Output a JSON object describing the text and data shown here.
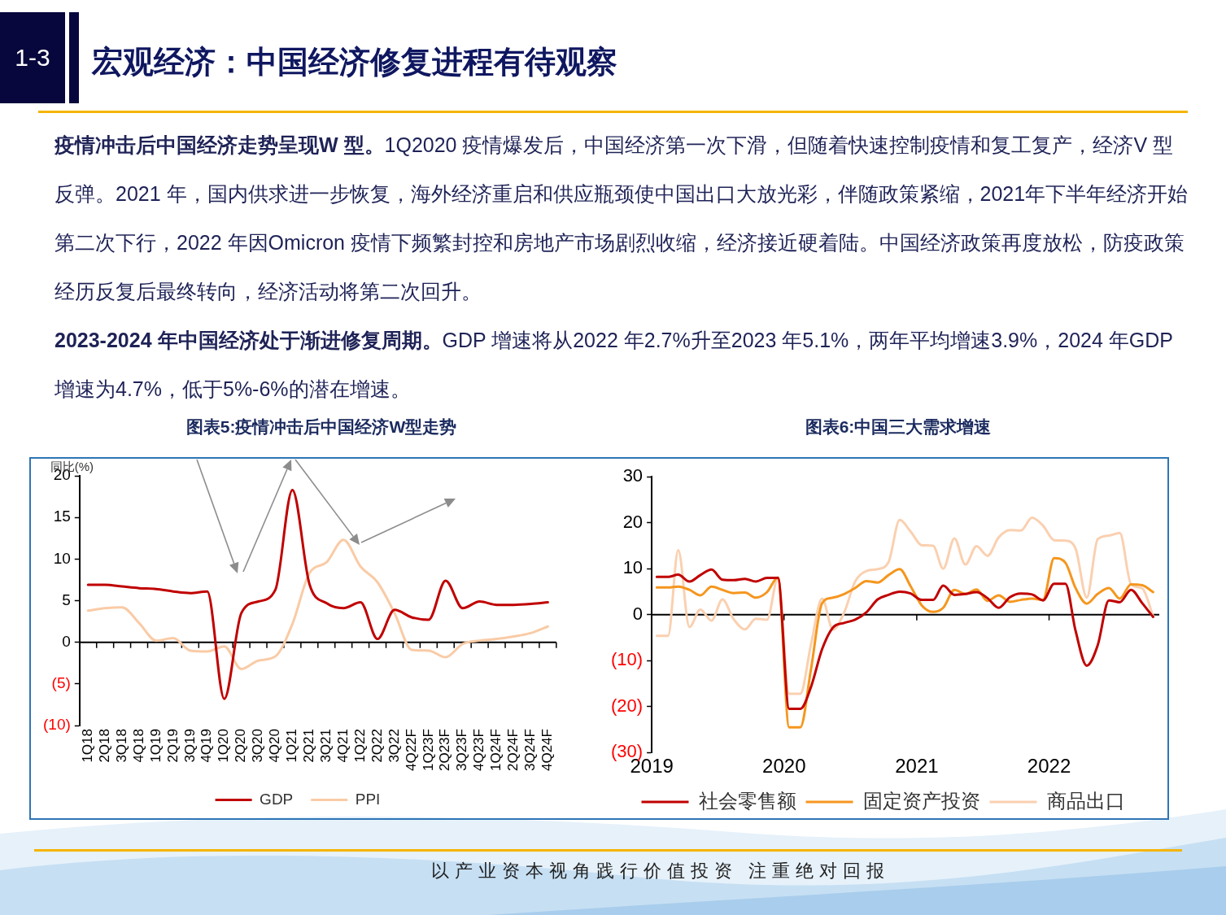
{
  "chart_data": [
    {
      "type": "other",
      "title": "宏观经济：中国经济修复进程有待观察",
      "annotations": [
        "1-3",
        "疫情冲击后中国经济走势呈现W 型。1Q2020 疫情爆发后，中国经济第一次下滑，但随着快速控制疫情和复工复产，经济V 型反弹。2021 年，国内供求进一步恢复，海外经济重启和供应瓶颈使中国出口大放光彩，伴随政策紧缩，2021年下半年经济开始第二次下行，2022 年因Omicron 疫情下频繁封控和房地产市场剧烈收缩，经济接近硬着陆。中国经济政策再度放松，防疫政策经历反复后最终转向，经济活动将第二次回升。",
        "2023-2024 年中国经济处于渐进修复周期。GDP 增速将从2022 年2.7%升至2023 年5.1%，两年平均增速3.9%，2024 年GDP 增速为4.7%，低于5%-6%的潜在增速。",
        "以产业资本视角践行价值投资 注重绝对回报"
      ]
    },
    {
      "type": "line",
      "title": "图表5:疫情冲击后中国经济W型走势",
      "ylabel": "同比(%)",
      "categories": [
        "1Q18",
        "2Q18",
        "3Q18",
        "4Q18",
        "1Q19",
        "2Q19",
        "3Q19",
        "4Q19",
        "1Q20",
        "2Q20",
        "3Q20",
        "4Q20",
        "1Q21",
        "2Q21",
        "3Q21",
        "4Q21",
        "1Q22",
        "2Q22",
        "3Q22",
        "4Q22F",
        "1Q23F",
        "2Q23F",
        "3Q23F",
        "4Q23F",
        "1Q24F",
        "2Q24F",
        "3Q24F",
        "4Q24F"
      ],
      "series": [
        {
          "name": "GDP",
          "color": "#c00000",
          "values": [
            6.9,
            6.9,
            6.7,
            6.5,
            6.4,
            6.1,
            5.9,
            6.1,
            -6.8,
            3.5,
            4.9,
            6.3,
            18.3,
            7.0,
            4.7,
            4.1,
            4.8,
            0.4,
            3.9,
            3.0,
            2.7,
            7.4,
            4.1,
            4.9,
            4.5,
            4.5,
            4.6,
            4.8
          ]
        },
        {
          "name": "PPI",
          "color": "#f9cba6",
          "values": [
            3.8,
            4.1,
            4.2,
            2.3,
            0.2,
            0.5,
            -1.0,
            -1.1,
            -0.5,
            -3.2,
            -2.2,
            -1.7,
            2.2,
            8.3,
            9.6,
            12.3,
            9.1,
            7.2,
            3.5,
            -0.9,
            -1.0,
            -1.8,
            -0.2,
            0.2,
            0.4,
            0.7,
            1.1,
            1.9
          ]
        }
      ],
      "ylim": [
        -10,
        20
      ],
      "yticks": [
        20,
        15,
        10,
        5,
        0,
        {
          "value": -5,
          "label": "(5)"
        },
        {
          "value": -10,
          "label": "(10)"
        }
      ],
      "legend": "bottom",
      "marker": "none"
    },
    {
      "type": "line",
      "title": "图表6:中国三大需求增速",
      "x": [
        "2019-01-15",
        "2019-02-15",
        "2019-03-15",
        "2019-04-15",
        "2019-05-15",
        "2019-06-15",
        "2019-07-15",
        "2019-08-15",
        "2019-09-15",
        "2019-10-15",
        "2019-11-15",
        "2019-12-15",
        "2020-01-15",
        "2020-02-15",
        "2020-03-15",
        "2020-04-15",
        "2020-05-15",
        "2020-06-15",
        "2020-07-15",
        "2020-08-15",
        "2020-09-15",
        "2020-10-15",
        "2020-11-15",
        "2020-12-15",
        "2021-01-15",
        "2021-02-15",
        "2021-03-15",
        "2021-04-15",
        "2021-05-15",
        "2021-06-15",
        "2021-07-15",
        "2021-08-15",
        "2021-09-15",
        "2021-10-15",
        "2021-11-15",
        "2021-12-15",
        "2022-01-15",
        "2022-02-15",
        "2022-03-15",
        "2022-04-15",
        "2022-05-15",
        "2022-06-15",
        "2022-07-15",
        "2022-08-15",
        "2022-09-15",
        "2022-10-15"
      ],
      "series": [
        {
          "name": "社会零售额",
          "color": "#c00000",
          "values": [
            8.2,
            8.2,
            8.7,
            7.2,
            8.6,
            9.8,
            7.6,
            7.5,
            7.8,
            7.2,
            8.0,
            8.0,
            -20.5,
            -20.5,
            -15.8,
            -7.5,
            -2.8,
            -1.8,
            -1.1,
            0.5,
            3.3,
            4.3,
            5.0,
            4.6,
            3.2,
            3.2,
            6.3,
            4.3,
            4.5,
            4.9,
            3.6,
            1.5,
            3.8,
            4.6,
            4.4,
            3.1,
            6.7,
            6.7,
            -3.5,
            -11.1,
            -6.7,
            3.1,
            2.7,
            5.4,
            2.5,
            -0.5
          ]
        },
        {
          "name": "固定资产投资",
          "color": "#f5961e",
          "values": [
            5.9,
            5.9,
            6.1,
            5.4,
            4.2,
            6.1,
            5.4,
            4.7,
            4.8,
            3.7,
            4.9,
            8.1,
            -24.5,
            -24.5,
            -12.0,
            2.5,
            3.7,
            4.5,
            5.8,
            7.3,
            7.0,
            8.6,
            9.9,
            6.2,
            2.0,
            0.6,
            1.5,
            5.4,
            4.5,
            5.5,
            3.0,
            4.2,
            2.8,
            3.2,
            3.5,
            3.2,
            12.3,
            11.3,
            5.8,
            2.4,
            4.5,
            5.8,
            3.5,
            6.6,
            6.4,
            4.9
          ]
        },
        {
          "name": "商品出口",
          "color": "#fad0b0",
          "values": [
            -4.6,
            -4.6,
            14.0,
            -2.7,
            1.1,
            -1.3,
            3.3,
            -1.0,
            -3.2,
            -0.9,
            -1.1,
            7.9,
            -17.2,
            -17.2,
            -6.6,
            3.5,
            -3.3,
            0.5,
            7.2,
            9.5,
            9.9,
            11.4,
            20.6,
            18.1,
            15.1,
            15.0,
            10.0,
            16.6,
            10.9,
            14.9,
            12.8,
            16.8,
            18.4,
            18.3,
            21.1,
            19.4,
            16.2,
            16.1,
            14.4,
            3.7,
            16.4,
            17.2,
            17.8,
            6.6,
            5.7,
            -0.3
          ]
        }
      ],
      "xlim": [
        "2019-01",
        "2022-11"
      ],
      "xticks": [
        "2019",
        "2020",
        "2021",
        "2022"
      ],
      "ylim": [
        -30,
        30
      ],
      "yticks": [
        30,
        20,
        10,
        0,
        {
          "value": -10,
          "label": "(10)"
        },
        {
          "value": -20,
          "label": "(20)"
        },
        {
          "value": -30,
          "label": "(30)"
        }
      ],
      "legend": "bottom",
      "marker": "none"
    }
  ]
}
